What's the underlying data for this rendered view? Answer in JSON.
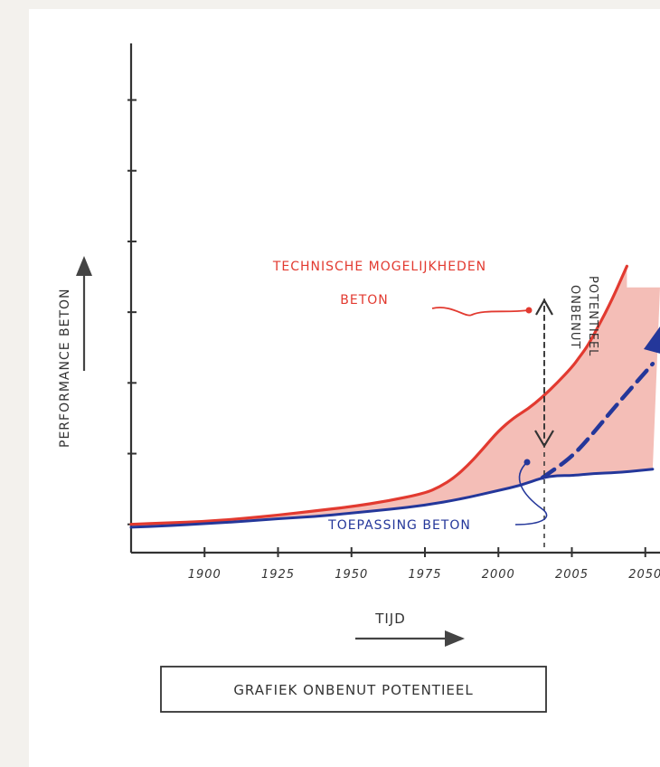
{
  "chart_data": {
    "type": "line",
    "title": "GRAFIEK ONBENUT POTENTIEEL",
    "xlabel": "TIJD",
    "ylabel": "PERFORMANCE BETON",
    "tick_labels": [
      "1900",
      "1925",
      "1950",
      "1975",
      "2000",
      "2005",
      "2050"
    ],
    "series": [
      {
        "name": "TECHNISCHE MOGELIJKHEDEN BETON",
        "name_line1": "TECHNISCHE MOGELIJKHEDEN",
        "name_line2": "BETON",
        "color": "#e23a30",
        "points": [
          [
            0,
            0.0
          ],
          [
            0.5,
            0.02
          ],
          [
            1.0,
            0.04
          ],
          [
            1.5,
            0.08
          ],
          [
            2.0,
            0.13
          ],
          [
            2.5,
            0.19
          ],
          [
            3.0,
            0.25
          ],
          [
            3.5,
            0.33
          ],
          [
            4.0,
            0.44
          ],
          [
            4.2,
            0.53
          ],
          [
            4.4,
            0.66
          ],
          [
            4.6,
            0.85
          ],
          [
            4.8,
            1.08
          ],
          [
            5.0,
            1.32
          ],
          [
            5.2,
            1.5
          ],
          [
            5.4,
            1.63
          ],
          [
            5.6,
            1.8
          ],
          [
            5.8,
            2.0
          ],
          [
            6.0,
            2.22
          ],
          [
            6.1,
            2.36
          ],
          [
            6.2,
            2.5
          ],
          [
            6.3,
            2.68
          ],
          [
            6.4,
            2.88
          ],
          [
            6.5,
            3.08
          ],
          [
            6.6,
            3.3
          ],
          [
            6.75,
            3.65
          ]
        ]
      },
      {
        "name": "TOEPASSING BETON",
        "color": "#24379a",
        "points": [
          [
            0,
            -0.04
          ],
          [
            0.5,
            -0.02
          ],
          [
            1.0,
            0.01
          ],
          [
            1.5,
            0.04
          ],
          [
            2.0,
            0.08
          ],
          [
            2.5,
            0.11
          ],
          [
            3.0,
            0.16
          ],
          [
            3.5,
            0.21
          ],
          [
            4.0,
            0.27
          ],
          [
            4.5,
            0.36
          ],
          [
            5.0,
            0.48
          ],
          [
            5.3,
            0.55
          ],
          [
            5.6,
            0.66
          ],
          [
            5.8,
            0.69
          ],
          [
            6.0,
            0.69
          ],
          [
            6.3,
            0.72
          ],
          [
            6.6,
            0.73
          ],
          [
            7.1,
            0.78
          ]
        ]
      }
    ],
    "trend": {
      "name": "TOEPASSING BETON (potentieel)",
      "color": "#24379a",
      "points": [
        [
          5.6,
          0.66
        ],
        [
          6.0,
          0.95
        ],
        [
          6.3,
          1.3
        ],
        [
          6.6,
          1.68
        ],
        [
          7.1,
          2.27
        ]
      ]
    },
    "gap_annotation": "ONBENUT POTENTIEEL",
    "gap_annotation_line1": "ONBENUT",
    "gap_annotation_line2": "POTENTIEEL",
    "colors": {
      "fill": "#f2b3aa",
      "axis": "#333333",
      "arrow": "#444444"
    },
    "ylim": [
      -0.4,
      6.8
    ],
    "xlim": [
      0,
      7.2
    ]
  }
}
